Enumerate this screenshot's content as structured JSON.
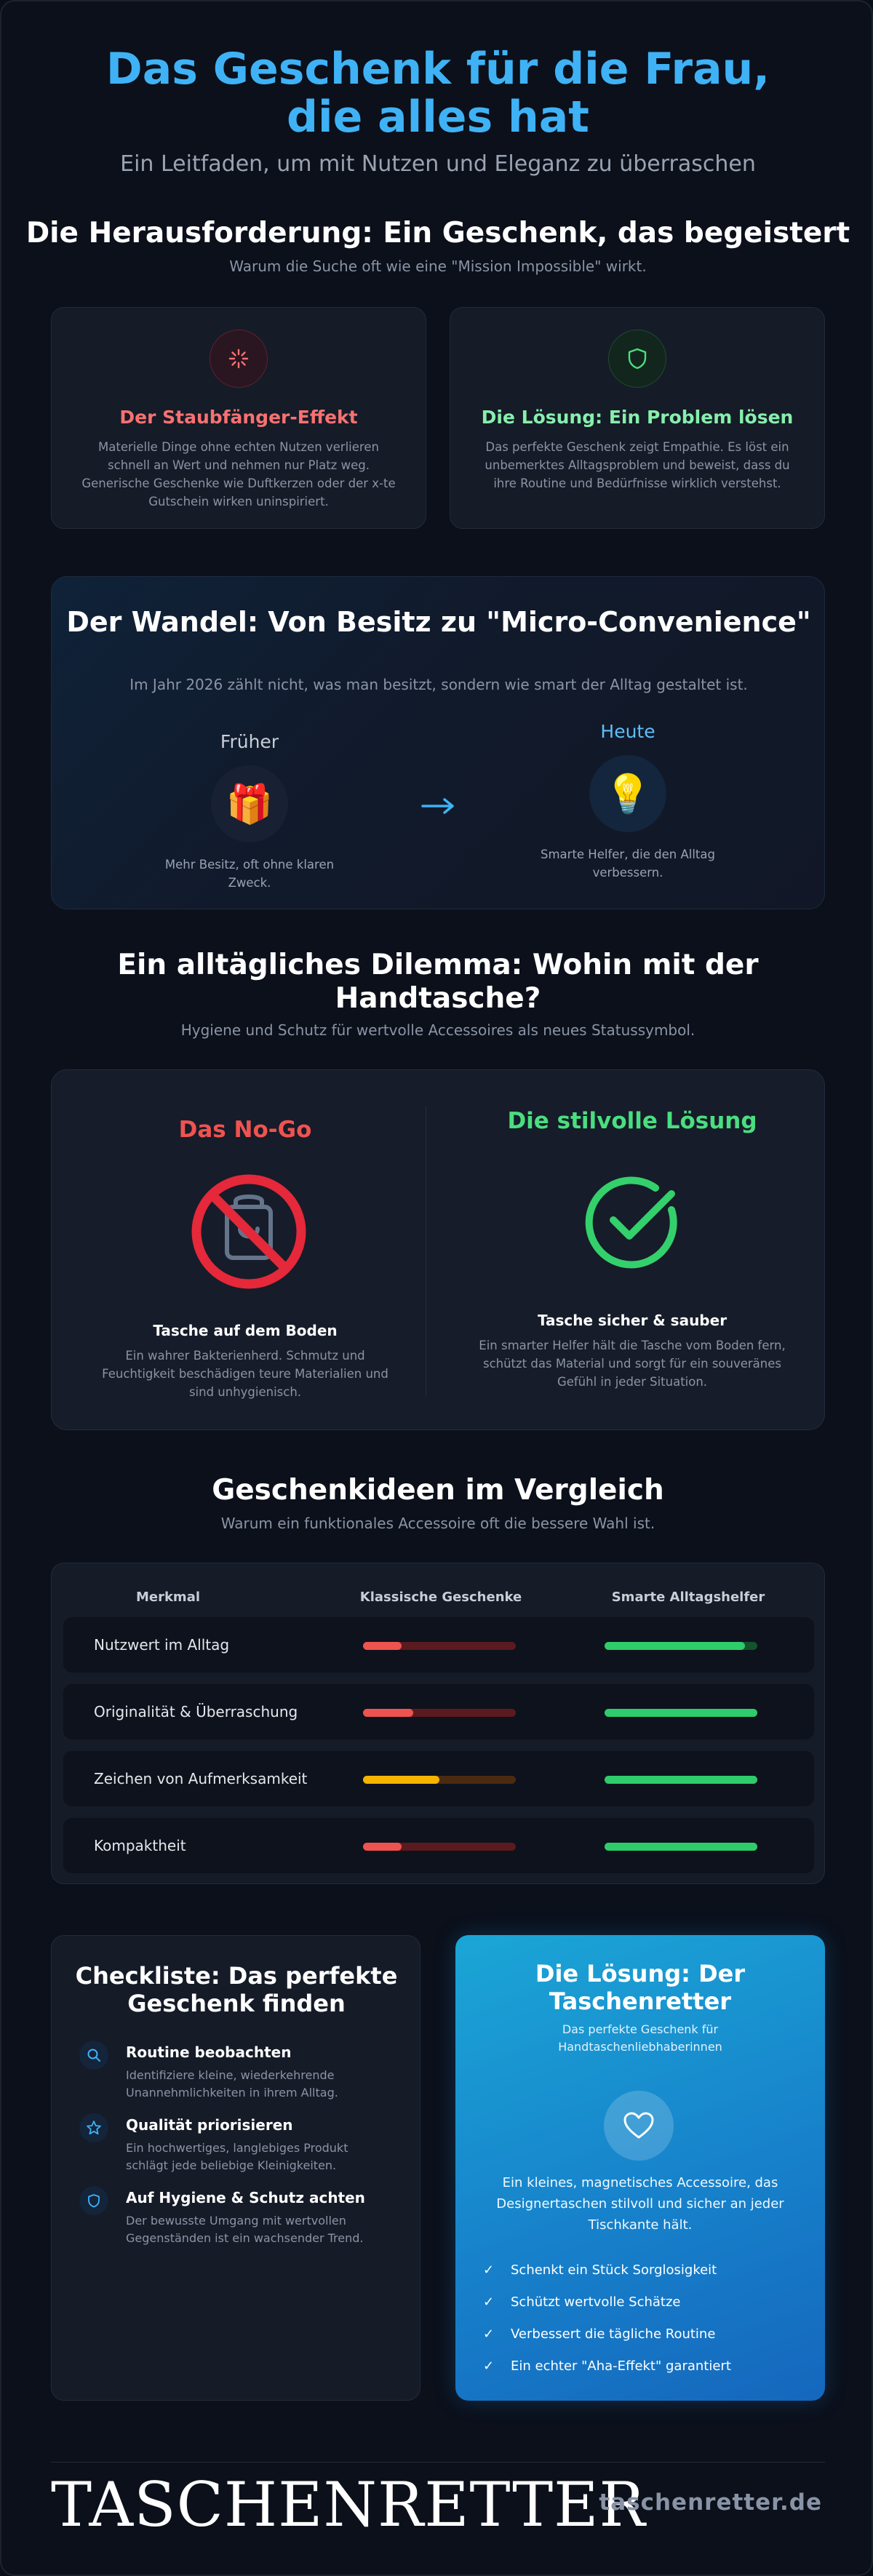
{
  "hero": {
    "title": "Das Geschenk für die Frau, die alles hat",
    "subtitle": "Ein Leitfaden, um mit Nutzen und Eleganz zu überraschen"
  },
  "challenge": {
    "title": "Die Herausforderung: Ein Geschenk, das begeistert",
    "subtitle": "Warum die Suche oft wie eine \"Mission Impossible\" wirkt.",
    "cards": [
      {
        "icon": "sparkle-icon",
        "title": "Der Staubfänger-Effekt",
        "text": "Materielle Dinge ohne echten Nutzen verlieren schnell an Wert und nehmen nur Platz weg. Generische Geschenke wie Duftkerzen oder der x-te Gutschein wirken uninspiriert.",
        "color": "#f87171"
      },
      {
        "icon": "shield-icon",
        "title": "Die Lösung: Ein Problem lösen",
        "text": "Das perfekte Geschenk zeigt Empathie. Es löst ein unbemerktes Alltagsproblem und beweist, dass du ihre Routine und Bedürfnisse wirklich verstehst.",
        "color": "#4ade80"
      }
    ]
  },
  "shift": {
    "title": "Der Wandel: Von Besitz zu \"Micro-Convenience\"",
    "subtitle": "Im Jahr 2026 zählt nicht, was man besitzt, sondern wie smart der Alltag gestaltet ist.",
    "before": {
      "label": "Früher",
      "icon": "gift-icon",
      "text": "Mehr Besitz, oft ohne klaren Zweck."
    },
    "now": {
      "label": "Heute",
      "icon": "lightbulb-icon",
      "text": "Smarte Helfer, die den Alltag verbessern."
    }
  },
  "dilemma": {
    "title": "Ein alltägliches Dilemma: Wohin mit der Handtasche?",
    "subtitle": "Hygiene und Schutz für wertvolle Accessoires als neues Statussymbol.",
    "nogo": {
      "heading": "Das No-Go",
      "icon": "no-bag-icon",
      "title": "Tasche auf dem Boden",
      "text": "Ein wahrer Bakterienherd. Schmutz und Feuchtigkeit beschädigen teure Materialien und sind unhygienisch.",
      "color": "#ef4444"
    },
    "solution": {
      "heading": "Die stilvolle Lösung",
      "icon": "check-circle-icon",
      "title": "Tasche sicher & sauber",
      "text": "Ein smarter Helfer hält die Tasche vom Boden fern, schützt das Material und sorgt für ein souveränes Gefühl in jeder Situation.",
      "color": "#4ade80"
    }
  },
  "comparison": {
    "title": "Geschenkideen im Vergleich",
    "subtitle": "Warum ein funktionales Accessoire oft die bessere Wahl ist.",
    "headers": [
      "Merkmal",
      "Klassische Geschenke",
      "Smarte Alltagshelfer"
    ],
    "rows": [
      {
        "label": "Nutzwert im Alltag",
        "classic": 0.25,
        "smart": 0.92,
        "classic_color": "#ef5350",
        "classic_track": "#5b1a1f"
      },
      {
        "label": "Originalität & Überraschung",
        "classic": 0.33,
        "smart": 1.0,
        "classic_color": "#ef5350",
        "classic_track": "#5b1a1f"
      },
      {
        "label": "Zeichen von Aufmerksamkeit",
        "classic": 0.5,
        "smart": 1.0,
        "classic_color": "#f5b400",
        "classic_track": "#4a2a10"
      },
      {
        "label": "Kompaktheit",
        "classic": 0.25,
        "smart": 1.0,
        "classic_color": "#ef5350",
        "classic_track": "#5b1a1f"
      }
    ],
    "smart_color": "#2ecc6a",
    "smart_track": "#14532d"
  },
  "checklist": {
    "title": "Checkliste: Das perfekte Geschenk finden",
    "items": [
      {
        "icon": "search-icon",
        "title": "Routine beobachten",
        "text": "Identifiziere kleine, wiederkehrende Unannehmlichkeiten in ihrem Alltag."
      },
      {
        "icon": "star-icon",
        "title": "Qualität priorisieren",
        "text": "Ein hochwertiges, langlebiges Produkt schlägt jede beliebige Kleinigkeiten."
      },
      {
        "icon": "shield-icon",
        "title": "Auf Hygiene & Schutz achten",
        "text": "Der bewusste Umgang mit wertvollen Gegenständen ist ein wachsender Trend."
      }
    ]
  },
  "product": {
    "title": "Die Lösung: Der Taschenretter",
    "subtitle": "Das perfekte Geschenk für Handtaschenliebhaberinnen",
    "icon": "heart-icon",
    "text": "Ein kleines, magnetisches Accessoire, das Designertaschen stilvoll und sicher an jeder Tischkante hält.",
    "benefits": [
      "Schenkt ein Stück Sorglosigkeit",
      "Schützt wertvolle Schätze",
      "Verbessert die tägliche Routine",
      "Ein echter \"Aha-Effekt\" garantiert"
    ]
  },
  "footer": {
    "logo": "TASCHENRETTER",
    "domain": "taschenretter.de"
  }
}
